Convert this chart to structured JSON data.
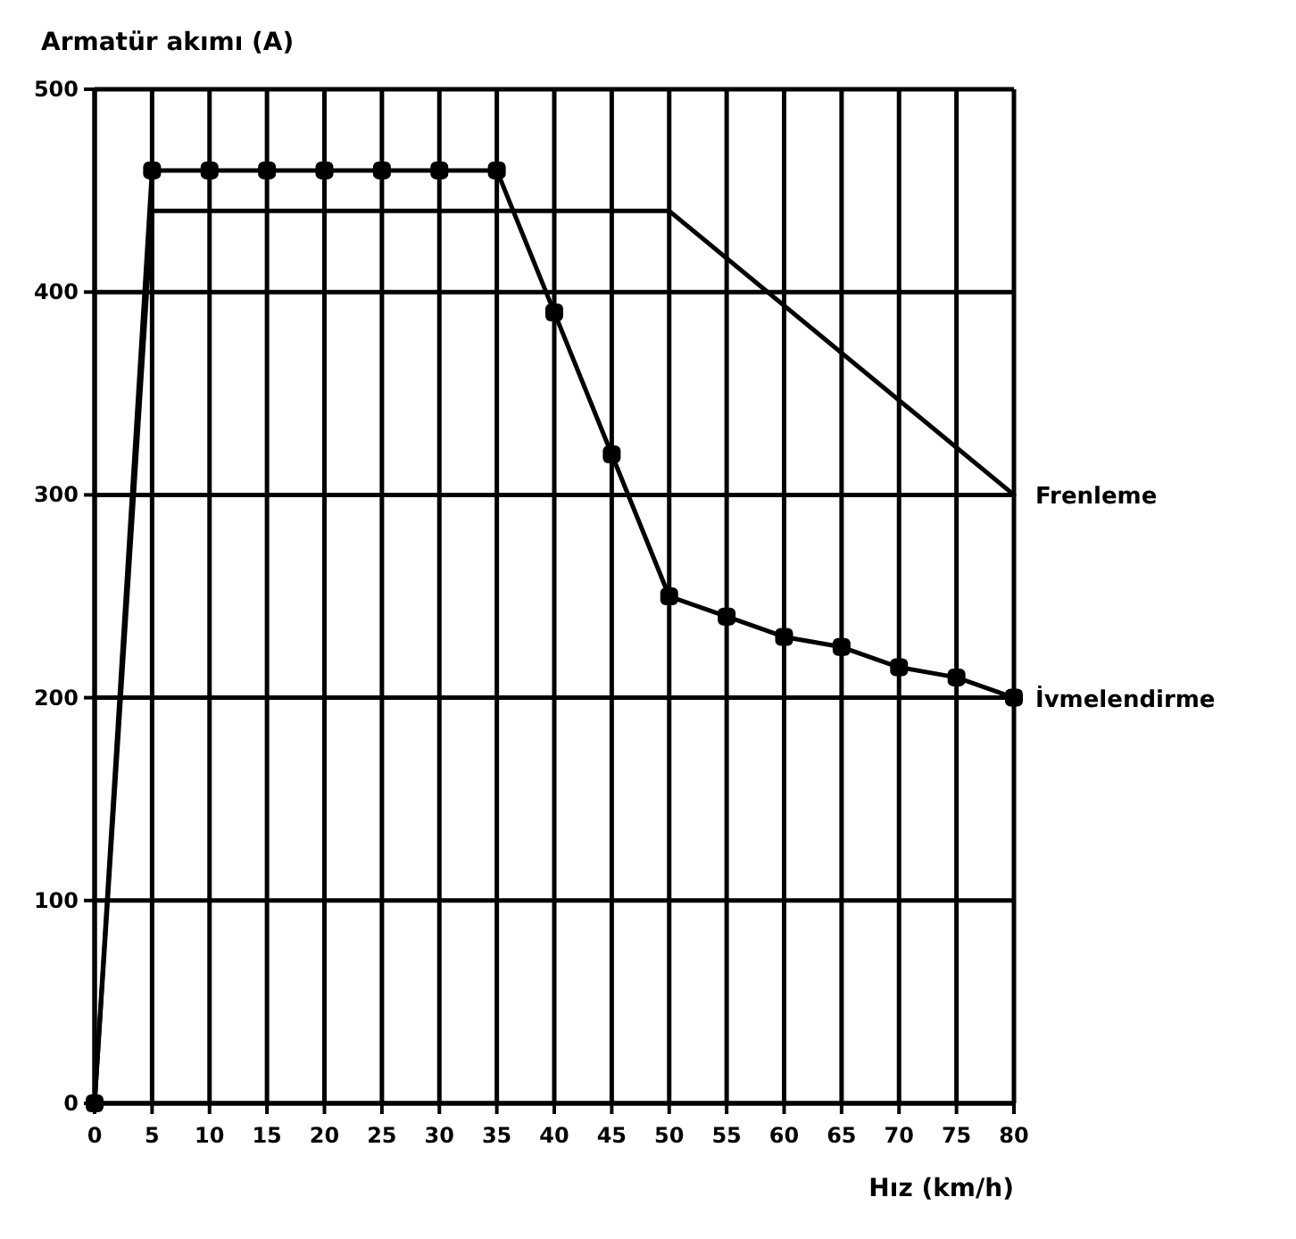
{
  "chart_data": {
    "type": "line",
    "xlabel": "Hız (km/h)",
    "ylabel": "Armatür akımı (A)",
    "x": [
      0,
      5,
      10,
      15,
      20,
      25,
      30,
      35,
      40,
      45,
      50,
      55,
      60,
      65,
      70,
      75,
      80
    ],
    "xlim": [
      0,
      80
    ],
    "xticks": [
      0,
      5,
      10,
      15,
      20,
      25,
      30,
      35,
      40,
      45,
      50,
      55,
      60,
      65,
      70,
      75,
      80
    ],
    "ylim": [
      0,
      500
    ],
    "yticks": [
      0,
      100,
      200,
      300,
      400,
      500
    ],
    "grid": true,
    "marker": "square",
    "line_style": "solid",
    "series": [
      {
        "name": "Frenleme",
        "color": "#000000",
        "marker": "none",
        "x": [
          0,
          5,
          50,
          80
        ],
        "values": [
          0,
          440,
          440,
          300
        ]
      },
      {
        "name": "İvmelendirme",
        "color": "#000000",
        "values": [
          0,
          460,
          460,
          460,
          460,
          460,
          460,
          460,
          390,
          320,
          250,
          240,
          230,
          225,
          215,
          210,
          200
        ]
      }
    ]
  }
}
